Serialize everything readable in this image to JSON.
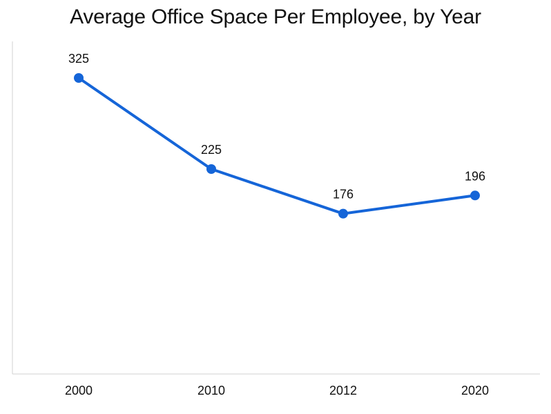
{
  "chart_data": {
    "type": "line",
    "title": "Average Office Space Per Employee, by Year",
    "xlabel": "",
    "ylabel": "",
    "categories": [
      "2000",
      "2010",
      "2012",
      "2020"
    ],
    "series": [
      {
        "values": [
          325,
          225,
          176,
          196
        ],
        "color": "#1565d8"
      }
    ],
    "data_labels": [
      "325",
      "225",
      "176",
      "196"
    ],
    "ylim": [
      0,
      400
    ],
    "grid": false,
    "legend": "none"
  }
}
